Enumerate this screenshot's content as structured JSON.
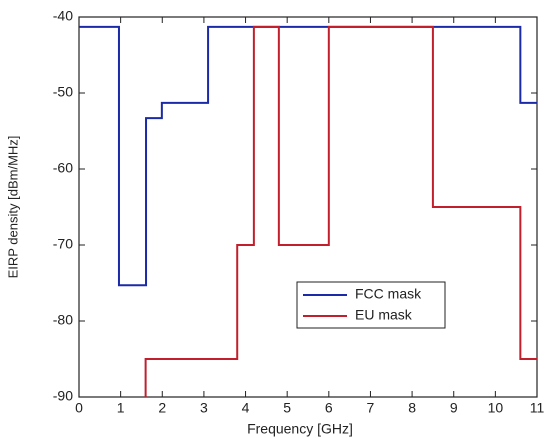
{
  "chart_data": {
    "type": "line",
    "x_label": "Frequency [GHz]",
    "y_label": "EIRP density [dBm/MHz]",
    "xlim": [
      0,
      11
    ],
    "xticks": [
      0,
      1,
      2,
      3,
      4,
      5,
      6,
      7,
      8,
      9,
      10,
      11
    ],
    "ylim": [
      -90,
      -40
    ],
    "yticks": [
      -90,
      -80,
      -70,
      -60,
      -50,
      -40
    ],
    "legend": "center",
    "series": [
      {
        "name": "FCC mask",
        "color": "#1b2aa6",
        "x": [
          0,
          0.96,
          0.96,
          1.61,
          1.61,
          1.99,
          1.99,
          3.1,
          3.1,
          10.6,
          10.6,
          11
        ],
        "values": [
          -41.3,
          -41.3,
          -75.3,
          -75.3,
          -53.3,
          -53.3,
          -51.3,
          -51.3,
          -41.3,
          -41.3,
          -51.3,
          -51.3
        ]
      },
      {
        "name": "EU mask",
        "color": "#c01f2b",
        "x": [
          1.6,
          1.6,
          3.8,
          3.8,
          4.2,
          4.2,
          4.8,
          4.8,
          6,
          6,
          8.5,
          8.5,
          10.6,
          10.6,
          11
        ],
        "values": [
          -90,
          -85,
          -85,
          -70,
          -70,
          -41.3,
          -41.3,
          -70,
          -70,
          -41.3,
          -41.3,
          -65,
          -65,
          -85,
          -85
        ]
      }
    ]
  }
}
